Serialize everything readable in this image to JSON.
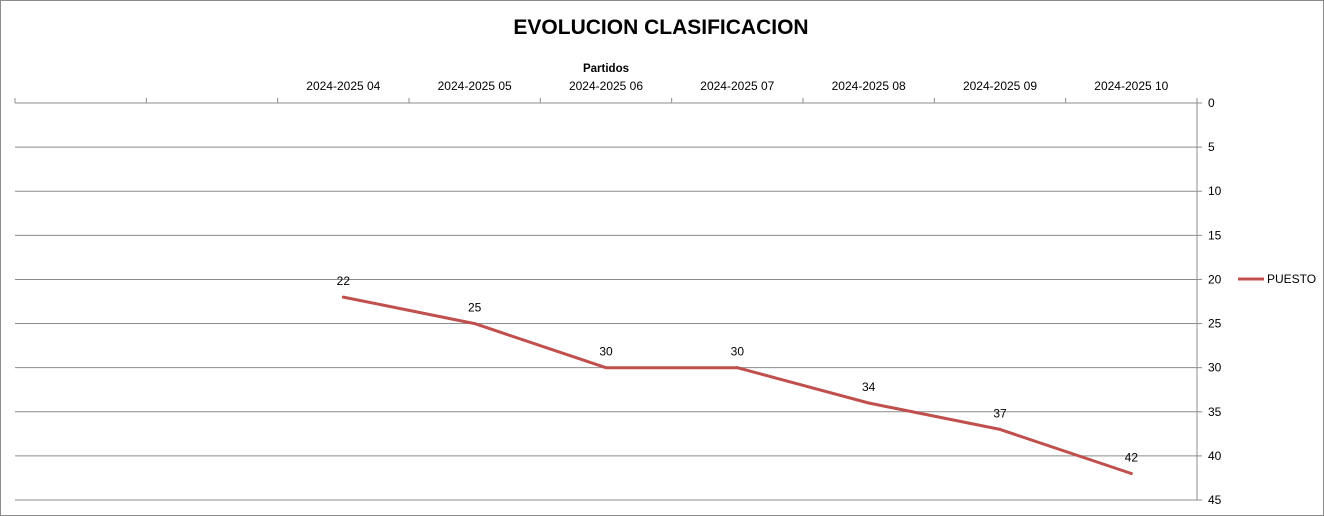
{
  "chart_data": {
    "type": "line",
    "title": "EVOLUCION CLASIFICACION",
    "xlabel": "Partidos",
    "ylabel": "",
    "categories": [
      "",
      "",
      "2024-2025 04",
      "2024-2025 05",
      "2024-2025 06",
      "2024-2025 07",
      "2024-2025 08",
      "2024-2025 09",
      "2024-2025 10"
    ],
    "y_ticks": [
      0,
      5,
      10,
      15,
      20,
      25,
      30,
      35,
      40,
      45
    ],
    "ylim": [
      0,
      45
    ],
    "y_reversed": true,
    "y_axis_side": "right",
    "x_axis_side": "top",
    "grid": true,
    "legend_position": "right",
    "series": [
      {
        "name": "PUESTO",
        "color": "#C0504D",
        "values": [
          null,
          null,
          22,
          25,
          30,
          30,
          34,
          37,
          42
        ]
      }
    ]
  }
}
